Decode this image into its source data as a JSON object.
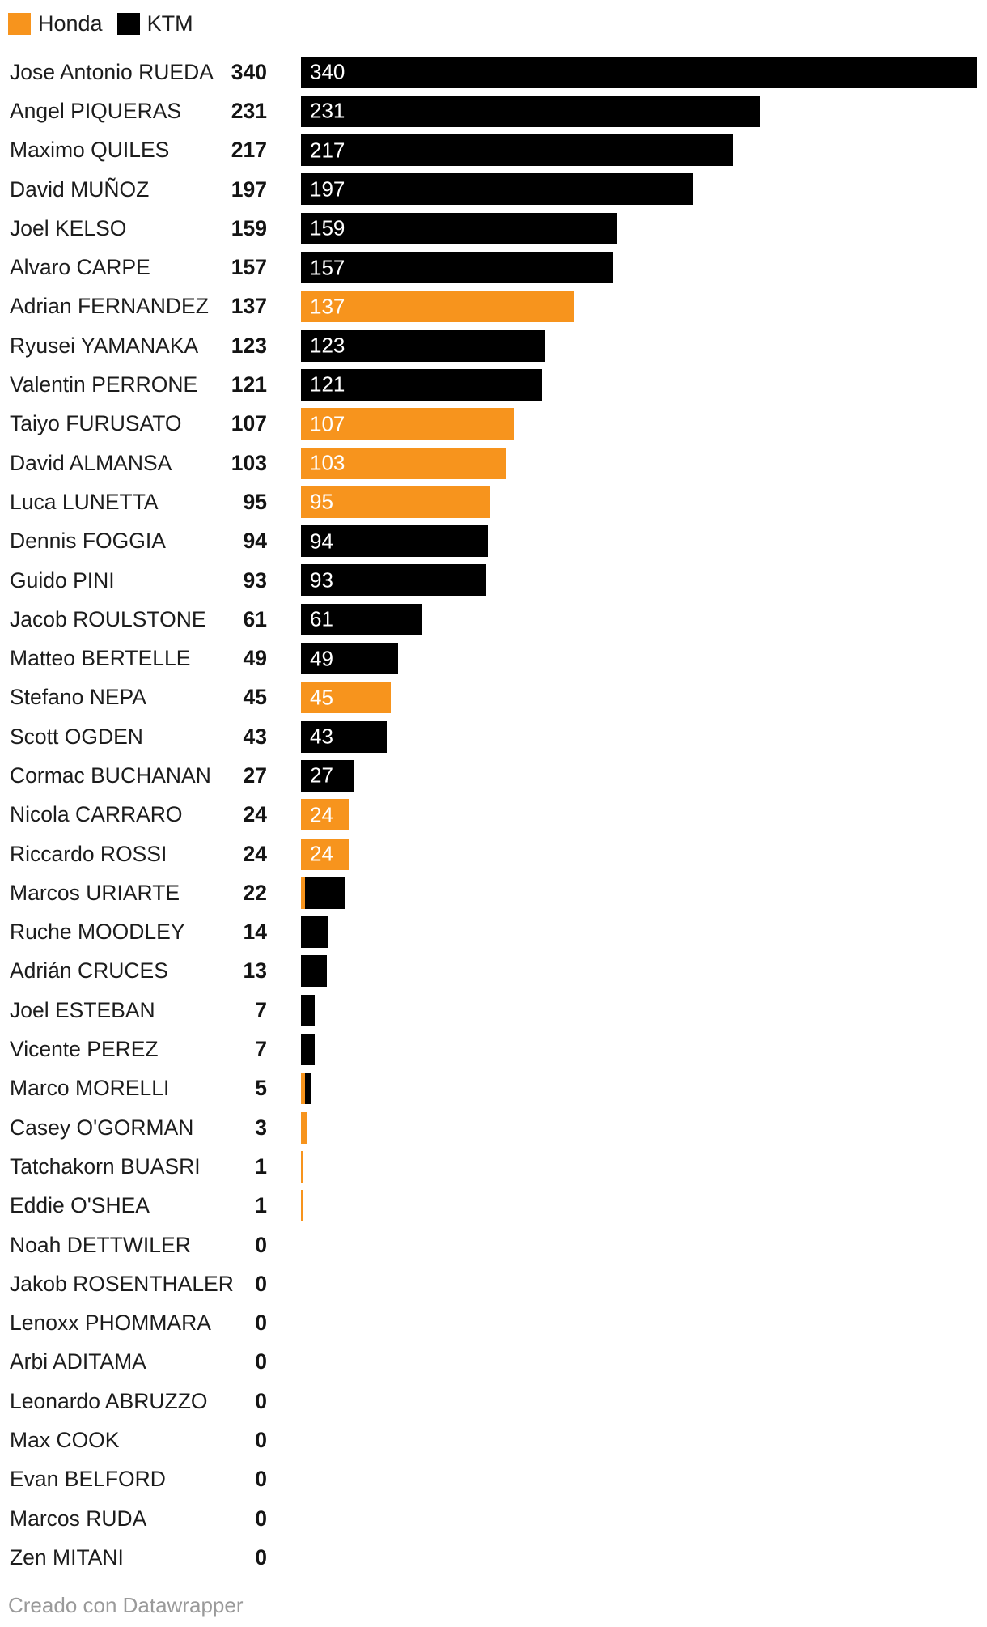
{
  "colors": {
    "Honda": "#F7941D",
    "KTM": "#000000"
  },
  "legend": {
    "items": [
      {
        "label": "Honda",
        "team": "Honda"
      },
      {
        "label": "KTM",
        "team": "KTM"
      }
    ]
  },
  "footer": {
    "text": "Creado con Datawrapper"
  },
  "chart_data": {
    "type": "bar",
    "orientation": "horizontal",
    "stacked": true,
    "grid": false,
    "legend_position": "top-left",
    "xlim": [
      0,
      340
    ],
    "series_names": [
      "Honda",
      "KTM"
    ],
    "riders": [
      {
        "name": "Jose Antonio RUEDA",
        "total": 340,
        "label": "340",
        "bar_label": "340",
        "segments": [
          {
            "team": "KTM",
            "points": 340
          }
        ]
      },
      {
        "name": "Angel PIQUERAS",
        "total": 231,
        "label": "231",
        "bar_label": "231",
        "segments": [
          {
            "team": "KTM",
            "points": 231
          }
        ]
      },
      {
        "name": "Maximo QUILES",
        "total": 217,
        "label": "217",
        "bar_label": "217",
        "segments": [
          {
            "team": "KTM",
            "points": 217
          }
        ]
      },
      {
        "name": "David MUÑOZ",
        "total": 197,
        "label": "197",
        "bar_label": "197",
        "segments": [
          {
            "team": "KTM",
            "points": 197
          }
        ]
      },
      {
        "name": "Joel KELSO",
        "total": 159,
        "label": "159",
        "bar_label": "159",
        "segments": [
          {
            "team": "KTM",
            "points": 159
          }
        ]
      },
      {
        "name": "Alvaro CARPE",
        "total": 157,
        "label": "157",
        "bar_label": "157",
        "segments": [
          {
            "team": "KTM",
            "points": 157
          }
        ]
      },
      {
        "name": "Adrian FERNANDEZ",
        "total": 137,
        "label": "137",
        "bar_label": "137",
        "segments": [
          {
            "team": "Honda",
            "points": 137
          }
        ]
      },
      {
        "name": "Ryusei YAMANAKA",
        "total": 123,
        "label": "123",
        "bar_label": "123",
        "segments": [
          {
            "team": "KTM",
            "points": 123
          }
        ]
      },
      {
        "name": "Valentin PERRONE",
        "total": 121,
        "label": "121",
        "bar_label": "121",
        "segments": [
          {
            "team": "KTM",
            "points": 121
          }
        ]
      },
      {
        "name": "Taiyo FURUSATO",
        "total": 107,
        "label": "107",
        "bar_label": "107",
        "segments": [
          {
            "team": "Honda",
            "points": 107
          }
        ]
      },
      {
        "name": "David ALMANSA",
        "total": 103,
        "label": "103",
        "bar_label": "103",
        "segments": [
          {
            "team": "Honda",
            "points": 103
          }
        ]
      },
      {
        "name": "Luca LUNETTA",
        "total": 95,
        "label": "95",
        "bar_label": "95",
        "segments": [
          {
            "team": "Honda",
            "points": 95
          }
        ]
      },
      {
        "name": "Dennis FOGGIA",
        "total": 94,
        "label": "94",
        "bar_label": "94",
        "segments": [
          {
            "team": "KTM",
            "points": 94
          }
        ]
      },
      {
        "name": "Guido PINI",
        "total": 93,
        "label": "93",
        "bar_label": "93",
        "segments": [
          {
            "team": "KTM",
            "points": 93
          }
        ]
      },
      {
        "name": "Jacob ROULSTONE",
        "total": 61,
        "label": "61",
        "bar_label": "61",
        "segments": [
          {
            "team": "KTM",
            "points": 61
          }
        ]
      },
      {
        "name": "Matteo BERTELLE",
        "total": 49,
        "label": "49",
        "bar_label": "49",
        "segments": [
          {
            "team": "KTM",
            "points": 49
          }
        ]
      },
      {
        "name": "Stefano NEPA",
        "total": 45,
        "label": "45",
        "bar_label": "45",
        "segments": [
          {
            "team": "Honda",
            "points": 45
          }
        ]
      },
      {
        "name": "Scott OGDEN",
        "total": 43,
        "label": "43",
        "bar_label": "43",
        "segments": [
          {
            "team": "KTM",
            "points": 43
          }
        ]
      },
      {
        "name": "Cormac BUCHANAN",
        "total": 27,
        "label": "27",
        "bar_label": "27",
        "segments": [
          {
            "team": "KTM",
            "points": 27
          }
        ]
      },
      {
        "name": "Nicola CARRARO",
        "total": 24,
        "label": "24",
        "bar_label": "24",
        "segments": [
          {
            "team": "Honda",
            "points": 24
          }
        ]
      },
      {
        "name": "Riccardo ROSSI",
        "total": 24,
        "label": "24",
        "bar_label": "24",
        "segments": [
          {
            "team": "Honda",
            "points": 24
          }
        ]
      },
      {
        "name": "Marcos URIARTE",
        "total": 22,
        "label": "22",
        "bar_label": null,
        "segments": [
          {
            "team": "Honda",
            "points": 2
          },
          {
            "team": "KTM",
            "points": 20
          }
        ]
      },
      {
        "name": "Ruche MOODLEY",
        "total": 14,
        "label": "14",
        "bar_label": null,
        "segments": [
          {
            "team": "KTM",
            "points": 14
          }
        ]
      },
      {
        "name": "Adrián CRUCES",
        "total": 13,
        "label": "13",
        "bar_label": null,
        "segments": [
          {
            "team": "KTM",
            "points": 13
          }
        ]
      },
      {
        "name": "Joel ESTEBAN",
        "total": 7,
        "label": "7",
        "bar_label": null,
        "segments": [
          {
            "team": "KTM",
            "points": 7
          }
        ]
      },
      {
        "name": "Vicente PEREZ",
        "total": 7,
        "label": "7",
        "bar_label": null,
        "segments": [
          {
            "team": "KTM",
            "points": 7
          }
        ]
      },
      {
        "name": "Marco MORELLI",
        "total": 5,
        "label": "5",
        "bar_label": null,
        "segments": [
          {
            "team": "Honda",
            "points": 2
          },
          {
            "team": "KTM",
            "points": 3
          }
        ]
      },
      {
        "name": "Casey O'GORMAN",
        "total": 3,
        "label": "3",
        "bar_label": null,
        "segments": [
          {
            "team": "Honda",
            "points": 3
          }
        ]
      },
      {
        "name": "Tatchakorn BUASRI",
        "total": 1,
        "label": "1",
        "bar_label": null,
        "segments": [
          {
            "team": "Honda",
            "points": 1
          }
        ]
      },
      {
        "name": "Eddie O'SHEA",
        "total": 1,
        "label": "1",
        "bar_label": null,
        "segments": [
          {
            "team": "Honda",
            "points": 1
          }
        ]
      },
      {
        "name": "Noah DETTWILER",
        "total": 0,
        "label": "0",
        "bar_label": null,
        "segments": []
      },
      {
        "name": "Jakob ROSENTHALER",
        "total": 0,
        "label": "0",
        "bar_label": null,
        "segments": []
      },
      {
        "name": "Lenoxx PHOMMARA",
        "total": 0,
        "label": "0",
        "bar_label": null,
        "segments": []
      },
      {
        "name": "Arbi ADITAMA",
        "total": 0,
        "label": "0",
        "bar_label": null,
        "segments": []
      },
      {
        "name": "Leonardo ABRUZZO",
        "total": 0,
        "label": "0",
        "bar_label": null,
        "segments": []
      },
      {
        "name": "Max COOK",
        "total": 0,
        "label": "0",
        "bar_label": null,
        "segments": []
      },
      {
        "name": "Evan BELFORD",
        "total": 0,
        "label": "0",
        "bar_label": null,
        "segments": []
      },
      {
        "name": "Marcos RUDA",
        "total": 0,
        "label": "0",
        "bar_label": null,
        "segments": []
      },
      {
        "name": "Zen MITANI",
        "total": 0,
        "label": "0",
        "bar_label": null,
        "segments": []
      }
    ]
  }
}
